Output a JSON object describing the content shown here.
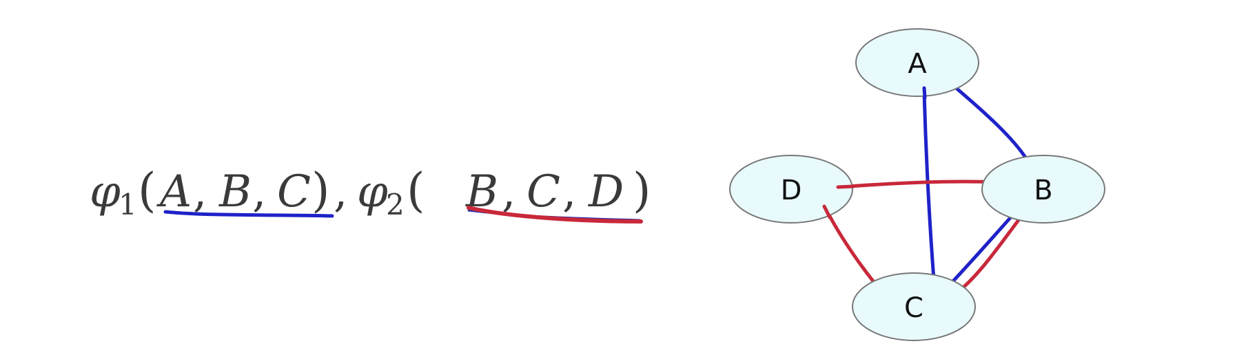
{
  "formula": {
    "phi": "φ",
    "sub1": "1",
    "sub2": "2",
    "open_paren": "(",
    "close_paren": ")",
    "comma": ",",
    "args1": [
      "A",
      "B",
      "C"
    ],
    "args2": [
      "B",
      "C",
      "D"
    ]
  },
  "graph": {
    "nodes": [
      {
        "id": "A",
        "label": "A"
      },
      {
        "id": "B",
        "label": "B"
      },
      {
        "id": "C",
        "label": "C"
      },
      {
        "id": "D",
        "label": "D"
      }
    ],
    "edges": [
      {
        "from": "A",
        "to": "B",
        "factor": "phi1"
      },
      {
        "from": "A",
        "to": "C",
        "factor": "phi1"
      },
      {
        "from": "B",
        "to": "C",
        "factor": "phi1"
      },
      {
        "from": "B",
        "to": "C",
        "factor": "phi2"
      },
      {
        "from": "D",
        "to": "B",
        "factor": "phi2"
      },
      {
        "from": "D",
        "to": "C",
        "factor": "phi2"
      }
    ]
  },
  "colors": {
    "phi1": "#1f22c8",
    "phi2": "#c8283a",
    "node_fill": "#e8fafb",
    "node_stroke": "#777777"
  }
}
